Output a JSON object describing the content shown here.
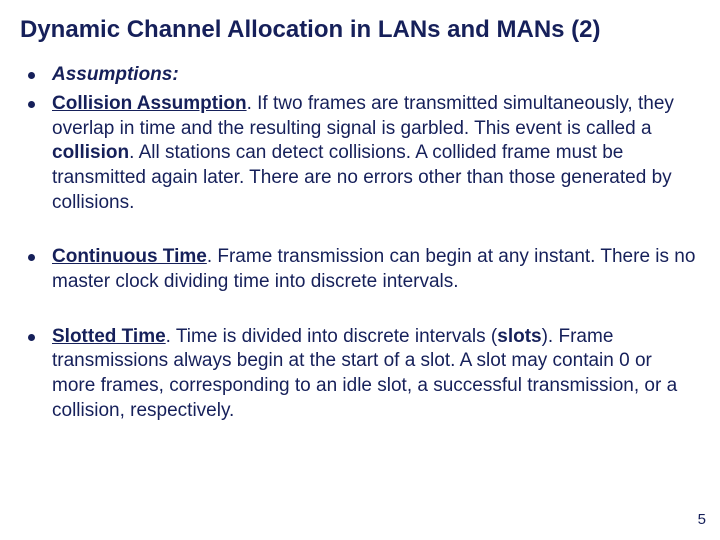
{
  "colors": {
    "text": "#16205a",
    "background": "#ffffff",
    "bullet": "#16205a"
  },
  "typography": {
    "title_fontsize": 24,
    "body_fontsize": 19,
    "font_family": "Arial"
  },
  "title": "Dynamic Channel Allocation in LANs and MANs (2)",
  "page_number": "5",
  "bullets": [
    {
      "label": "Assumptions:",
      "label_style": "italic-bold"
    },
    {
      "heading": "Collision Assumption",
      "text_before_bold1": ". If two frames are transmitted simultaneously, they overlap in time and the resulting signal is garbled. This event is called a ",
      "bold1": "collision",
      "text_after_bold1": ". All stations can detect collisions. A collided frame must be transmitted again later. There are no errors other than those generated by collisions."
    },
    {
      "heading": "Continuous Time",
      "text": ". Frame transmission can begin at any instant. There is no master clock dividing time into discrete intervals."
    },
    {
      "heading": "Slotted Time",
      "text_before_bold1": ". Time is divided into discrete intervals (",
      "bold1": "slots",
      "text_after_bold1": "). Frame transmissions always begin at the start of a slot. A slot may contain 0 or more frames, corresponding to an idle slot, a successful transmission, or a collision, respectively."
    }
  ]
}
